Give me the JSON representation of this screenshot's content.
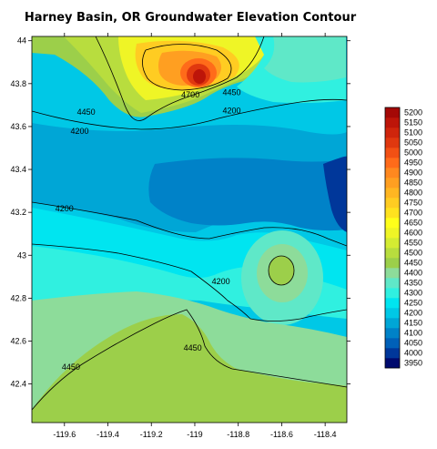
{
  "chart_data": {
    "type": "contour",
    "title": "Harney Basin, OR Groundwater Elevation Contour",
    "xlabel": "",
    "ylabel": "",
    "xlim": [
      -119.75,
      -118.3
    ],
    "ylim": [
      42.22,
      44.02
    ],
    "x_ticks": [
      -119.6,
      -119.4,
      -119.2,
      -119,
      -118.8,
      -118.6,
      -118.4
    ],
    "y_ticks": [
      42.4,
      42.6,
      42.8,
      43,
      43.2,
      43.4,
      43.6,
      43.8,
      44
    ],
    "x_tick_labels": [
      "-119.6",
      "-119.4",
      "-119.2",
      "-119",
      "-118.8",
      "-118.6",
      "-118.4"
    ],
    "y_tick_labels": [
      "42.4",
      "42.6",
      "42.8",
      "43",
      "43.2",
      "43.4",
      "43.6",
      "43.8",
      "44"
    ],
    "grid": false,
    "legend": "right",
    "contour_labels": [
      {
        "text": "4700",
        "x": -119.02,
        "y": 43.74
      },
      {
        "text": "4450",
        "x": -118.83,
        "y": 43.75
      },
      {
        "text": "4450",
        "x": -119.5,
        "y": 43.66
      },
      {
        "text": "4200",
        "x": -118.83,
        "y": 43.665
      },
      {
        "text": "4200",
        "x": -119.53,
        "y": 43.57
      },
      {
        "text": "4200",
        "x": -119.6,
        "y": 43.21
      },
      {
        "text": "4200",
        "x": -118.88,
        "y": 42.87
      },
      {
        "text": "4450",
        "x": -119.01,
        "y": 42.56
      },
      {
        "text": "4450",
        "x": -119.57,
        "y": 42.47
      }
    ],
    "colorbar": {
      "levels": [
        3950,
        4000,
        4050,
        4100,
        4150,
        4200,
        4250,
        4300,
        4350,
        4400,
        4450,
        4500,
        4550,
        4600,
        4650,
        4700,
        4750,
        4800,
        4850,
        4900,
        4950,
        5000,
        5050,
        5100,
        5150,
        5200
      ],
      "labels": [
        "3950",
        "4000",
        "4050",
        "4100",
        "4150",
        "4200",
        "4250",
        "4300",
        "4350",
        "4400",
        "4450",
        "4500",
        "4550",
        "4600",
        "4650",
        "4700",
        "4750",
        "4800",
        "4850",
        "4900",
        "4950",
        "5000",
        "5050",
        "5100",
        "5150",
        "5200"
      ],
      "colors": [
        "#000a6e",
        "#00379a",
        "#0060b8",
        "#0082c8",
        "#00a6d6",
        "#00c8e6",
        "#00e5f0",
        "#30f0e0",
        "#5fe8c8",
        "#8ddc9a",
        "#9ccf4a",
        "#b8dd3e",
        "#d4ec32",
        "#eff526",
        "#ffff1a",
        "#ffe21f",
        "#ffcc22",
        "#ffb622",
        "#ff9f21",
        "#ff881f",
        "#ff6b1a",
        "#f25014",
        "#e0380f",
        "#cf250c",
        "#bd1509",
        "#a40806"
      ]
    }
  }
}
